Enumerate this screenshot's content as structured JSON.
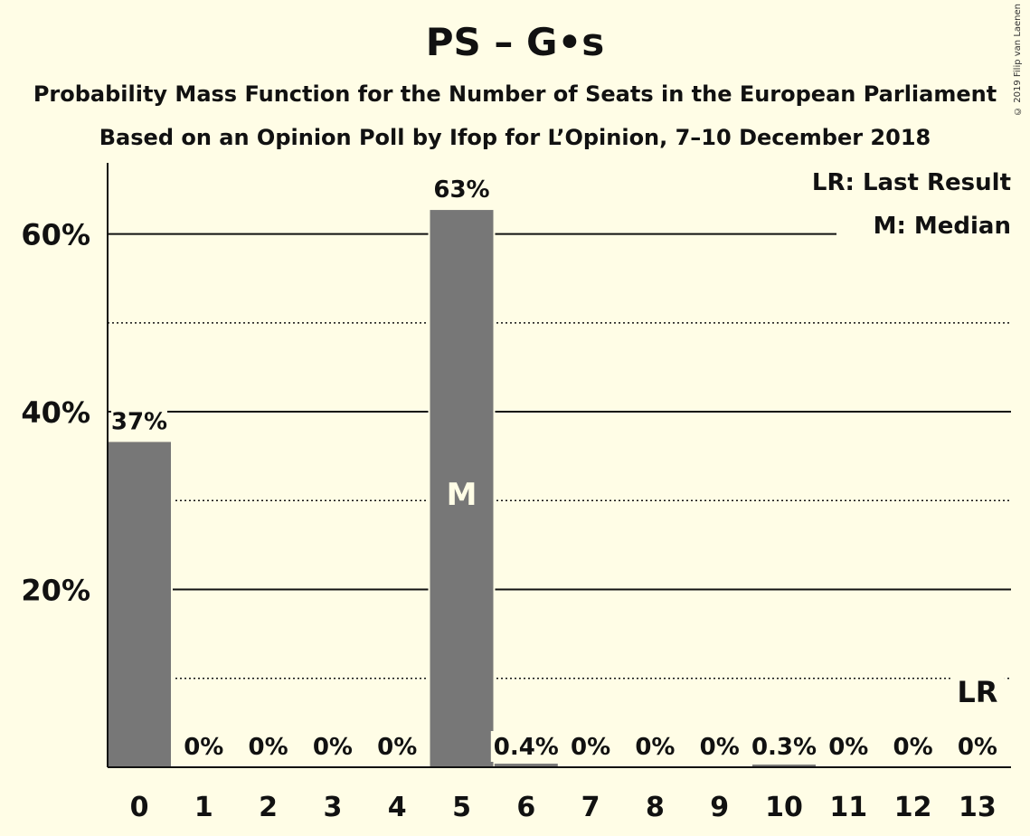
{
  "chart_data": {
    "type": "bar",
    "title": "PS – G•s",
    "subtitle": "Probability Mass Function for the Number of Seats in the European Parliament",
    "subtitle2": "Based on an Opinion Poll by Ifop for L’Opinion, 7–10 December 2018",
    "copyright": "© 2019 Filip van Laenen",
    "categories": [
      "0",
      "1",
      "2",
      "3",
      "4",
      "5",
      "6",
      "7",
      "8",
      "9",
      "10",
      "11",
      "12",
      "13"
    ],
    "values": [
      36.6,
      0,
      0,
      0,
      0,
      62.7,
      0.4,
      0,
      0,
      0,
      0.3,
      0,
      0,
      0
    ],
    "value_labels": [
      "37%",
      "0%",
      "0%",
      "0%",
      "0%",
      "63%",
      "0.4%",
      "0%",
      "0%",
      "0%",
      "0.3%",
      "0%",
      "0%",
      "0%"
    ],
    "ylim": [
      0,
      68
    ],
    "yticks": [
      20,
      40,
      60
    ],
    "ytick_labels": [
      "20%",
      "40%",
      "60%"
    ],
    "minor_gridlines": [
      10,
      30,
      50
    ],
    "median_index": 5,
    "median_marker": "M",
    "last_result_index": 13,
    "last_result_marker": "LR",
    "legend": [
      "LR: Last Result",
      "M: Median"
    ],
    "legend_position": "top-right",
    "colors": {
      "background": "#FFFDE6",
      "bar": "#777777",
      "text": "#111111",
      "median_text": "#FFFDE6"
    }
  }
}
